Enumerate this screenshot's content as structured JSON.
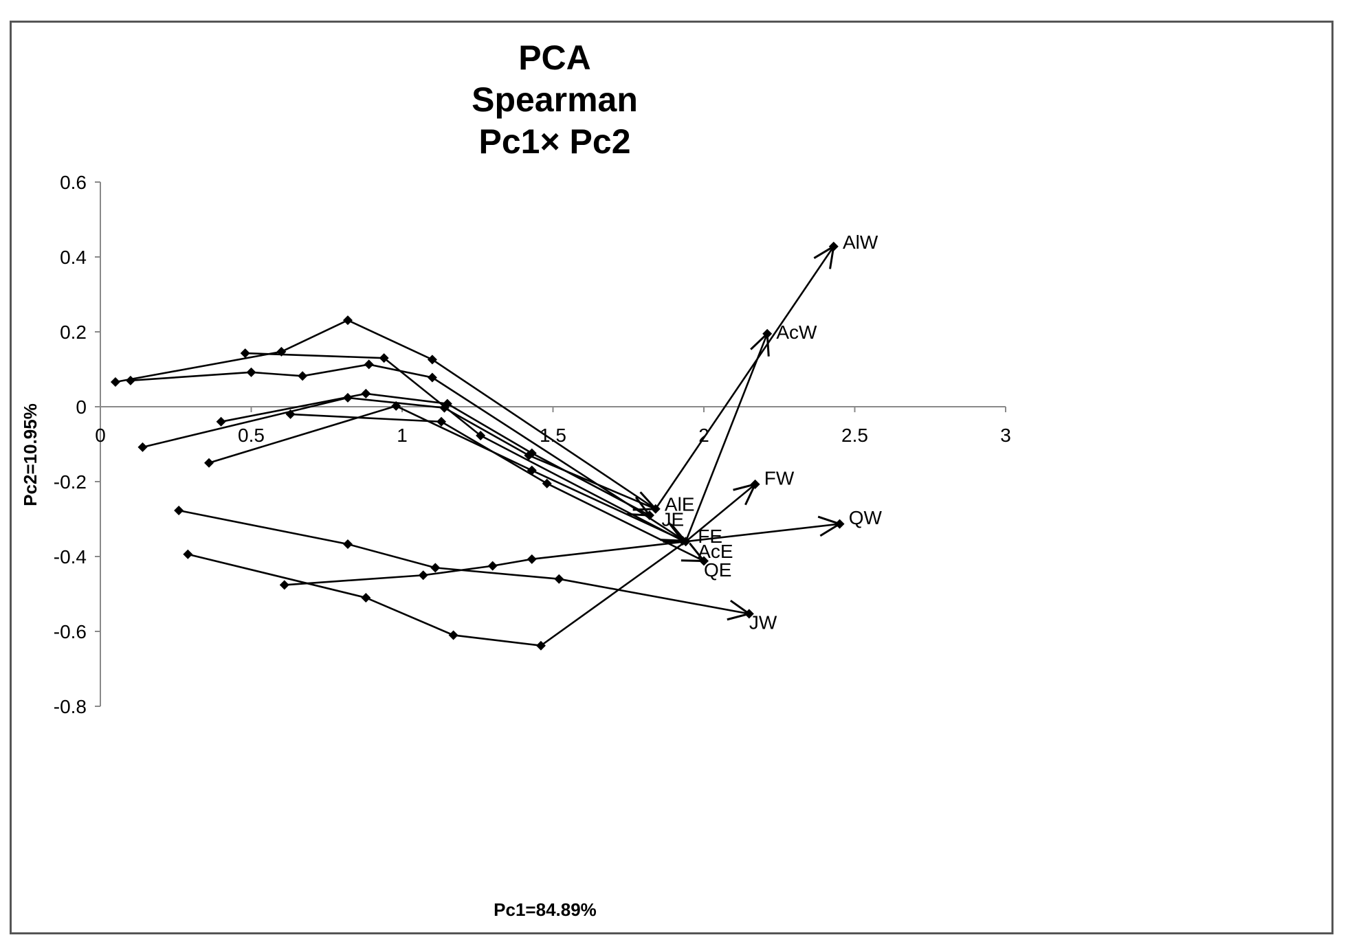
{
  "chart_data": {
    "type": "line",
    "title_lines": [
      "PCA",
      "Spearman",
      "Pc1× Pc2"
    ],
    "xlabel": "Pc1=84.89%",
    "ylabel": "Pc2=10.95%",
    "xlim": [
      0,
      3
    ],
    "ylim": [
      -0.8,
      0.6
    ],
    "xticks": [
      {
        "value": 0,
        "label": "0"
      },
      {
        "value": 0.5,
        "label": "0.5"
      },
      {
        "value": 1,
        "label": "1"
      },
      {
        "value": 1.5,
        "label": "1.5"
      },
      {
        "value": 2,
        "label": "2"
      },
      {
        "value": 2.5,
        "label": "2.5"
      },
      {
        "value": 3,
        "label": "3"
      }
    ],
    "yticks": [
      {
        "value": 0.6,
        "label": "0.6"
      },
      {
        "value": 0.4,
        "label": "0.4"
      },
      {
        "value": 0.2,
        "label": "0.2"
      },
      {
        "value": 0,
        "label": "0"
      },
      {
        "value": -0.2,
        "label": "-0.2"
      },
      {
        "value": -0.4,
        "label": "-0.4"
      },
      {
        "value": -0.6,
        "label": "-0.6"
      },
      {
        "value": -0.8,
        "label": "-0.8"
      }
    ],
    "grid": false,
    "legend": "none",
    "marker": "diamond",
    "line_color": "#000000",
    "end_arrows": true,
    "series": [
      {
        "label": "AlW",
        "points": [
          [
            0.05,
            0.066
          ],
          [
            0.6,
            0.147
          ],
          [
            0.82,
            0.231
          ],
          [
            1.1,
            0.126
          ],
          [
            1.84,
            -0.273
          ]
        ],
        "end": [
          2.43,
          0.428
        ]
      },
      {
        "label": "AcW",
        "points": [
          [
            0.1,
            0.07
          ],
          [
            0.5,
            0.092
          ],
          [
            0.67,
            0.082
          ],
          [
            0.89,
            0.113
          ],
          [
            1.1,
            0.078
          ],
          [
            1.94,
            -0.36
          ]
        ],
        "end": [
          2.21,
          0.195
        ]
      },
      {
        "label": "FW",
        "points": [
          [
            0.29,
            -0.394
          ],
          [
            0.88,
            -0.51
          ],
          [
            1.17,
            -0.61
          ],
          [
            1.46,
            -0.638
          ],
          [
            1.94,
            -0.36
          ]
        ],
        "end": [
          2.17,
          -0.207
        ]
      },
      {
        "label": "QW",
        "points": [
          [
            0.61,
            -0.476
          ],
          [
            1.07,
            -0.45
          ],
          [
            1.3,
            -0.425
          ],
          [
            1.43,
            -0.407
          ],
          [
            1.94,
            -0.36
          ]
        ],
        "end": [
          2.45,
          -0.313
        ]
      },
      {
        "label": "JW",
        "points": [
          [
            0.26,
            -0.277
          ],
          [
            0.82,
            -0.367
          ],
          [
            1.11,
            -0.43
          ],
          [
            1.52,
            -0.46
          ]
        ],
        "end": [
          2.15,
          -0.553
        ]
      },
      {
        "label": "AlE",
        "points": [
          [
            0.14,
            -0.108
          ],
          [
            0.82,
            0.024
          ],
          [
            1.14,
            -0.003
          ],
          [
            1.42,
            -0.13
          ],
          [
            1.84,
            -0.273
          ]
        ]
      },
      {
        "label": "JE",
        "points": [
          [
            0.4,
            -0.04
          ],
          [
            0.88,
            0.035
          ],
          [
            1.15,
            0.008
          ],
          [
            1.43,
            -0.124
          ],
          [
            1.82,
            -0.29
          ]
        ]
      },
      {
        "label": "FE",
        "points": [
          [
            0.48,
            0.143
          ],
          [
            0.94,
            0.13
          ],
          [
            1.26,
            -0.077
          ],
          [
            1.93,
            -0.358
          ]
        ]
      },
      {
        "label": "AcE",
        "points": [
          [
            0.36,
            -0.15
          ],
          [
            0.98,
            0.002
          ],
          [
            1.43,
            -0.17
          ],
          [
            1.94,
            -0.36
          ]
        ]
      },
      {
        "label": "QE",
        "points": [
          [
            0.63,
            -0.02
          ],
          [
            1.13,
            -0.04
          ],
          [
            1.48,
            -0.205
          ],
          [
            2.0,
            -0.412
          ]
        ]
      }
    ],
    "point_labels": [
      {
        "text": "AlW",
        "x": 2.46,
        "y": 0.44
      },
      {
        "text": "AcW",
        "x": 2.24,
        "y": 0.2
      },
      {
        "text": "AlE",
        "x": 1.87,
        "y": -0.26
      },
      {
        "text": "JE",
        "x": 1.86,
        "y": -0.3
      },
      {
        "text": "FE",
        "x": 1.98,
        "y": -0.345
      },
      {
        "text": "AcE",
        "x": 1.98,
        "y": -0.385
      },
      {
        "text": "QE",
        "x": 2.0,
        "y": -0.435
      },
      {
        "text": "FW",
        "x": 2.2,
        "y": -0.19
      },
      {
        "text": "QW",
        "x": 2.48,
        "y": -0.295
      },
      {
        "text": "JW",
        "x": 2.15,
        "y": -0.575
      }
    ]
  }
}
